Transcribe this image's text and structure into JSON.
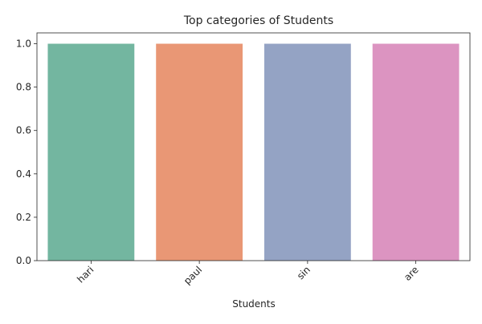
{
  "chart_data": {
    "type": "bar",
    "title": "Top categories of Students",
    "xlabel": "Students",
    "ylabel": "",
    "categories": [
      "hari",
      "paul",
      "sin",
      "are"
    ],
    "values": [
      1,
      1,
      1,
      1
    ],
    "ylim": [
      0,
      1.05
    ],
    "yticks": [
      0.0,
      0.2,
      0.4,
      0.6,
      0.8,
      1.0
    ],
    "ytick_labels": [
      "0.0",
      "0.2",
      "0.4",
      "0.6",
      "0.8",
      "1.0"
    ],
    "bar_colors": [
      "#73b6a0",
      "#e99775",
      "#94a3c4",
      "#dc94c1"
    ],
    "xtick_rotation": "45 degrees",
    "grid": false,
    "legend": "none"
  }
}
